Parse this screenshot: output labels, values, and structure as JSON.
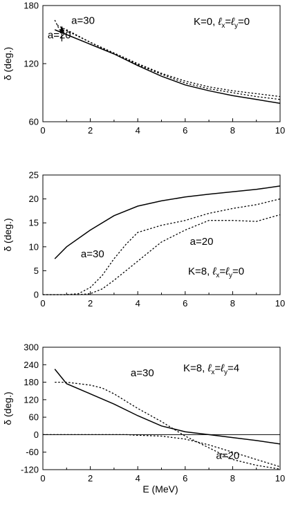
{
  "chart_data": [
    {
      "type": "line",
      "ylabel": "δ (deg.)",
      "annotation": {
        "label": "K=0, ",
        "lx": "ℓ",
        "lx_sub": "x",
        "eq": "=",
        "ly": "ℓ",
        "ly_sub": "y",
        "value": "=0"
      },
      "xlim": [
        0,
        10
      ],
      "ylim": [
        60,
        180
      ],
      "xticks": [
        0,
        2,
        4,
        6,
        8,
        10
      ],
      "yticks": [
        60,
        120,
        180
      ],
      "series": [
        {
          "style": "solid",
          "x": [
            0.5,
            1,
            2,
            3,
            4,
            5,
            6,
            7,
            8,
            9,
            10
          ],
          "y": [
            155,
            150,
            140,
            130,
            118,
            107,
            98,
            92,
            87,
            83,
            79
          ]
        },
        {
          "style": "dotted",
          "x": [
            0.5,
            0.7,
            1,
            2,
            3,
            4,
            5,
            6,
            7,
            8,
            9,
            10
          ],
          "y": [
            165,
            155,
            154,
            142,
            130,
            119,
            109,
            100,
            94,
            90,
            86,
            83
          ]
        },
        {
          "style": "dotted",
          "x": [
            0.6,
            0.8,
            1,
            2,
            3,
            4,
            5,
            6,
            7,
            8,
            9,
            10
          ],
          "y": [
            160,
            157,
            155,
            142,
            131,
            120,
            110,
            102,
            96,
            92,
            89,
            86
          ]
        }
      ],
      "labels": [
        {
          "text": "a=30",
          "x": 1.2,
          "y": 161
        },
        {
          "text": "a=20",
          "x": 0.2,
          "y": 146
        }
      ]
    },
    {
      "type": "line",
      "ylabel": "δ (deg.)",
      "annotation": {
        "label": "K=8, ",
        "lx": "ℓ",
        "lx_sub": "x",
        "eq": "=",
        "ly": "ℓ",
        "ly_sub": "y",
        "value": "=0"
      },
      "xlim": [
        0,
        10
      ],
      "ylim": [
        0,
        25
      ],
      "xticks": [
        0,
        2,
        4,
        6,
        8,
        10
      ],
      "yticks": [
        0,
        5,
        10,
        15,
        20,
        25
      ],
      "series": [
        {
          "style": "solid",
          "x": [
            0.5,
            1,
            2,
            3,
            4,
            5,
            6,
            7,
            8,
            9,
            10
          ],
          "y": [
            7.5,
            10,
            13.5,
            16.5,
            18.5,
            19.6,
            20.4,
            21,
            21.5,
            22,
            22.7
          ]
        },
        {
          "style": "dotted",
          "x": [
            0,
            1,
            1.5,
            2,
            2.5,
            3,
            3.5,
            4,
            5,
            6,
            7,
            8,
            9,
            10
          ],
          "y": [
            0,
            0,
            0.2,
            1.5,
            4,
            7.5,
            10.5,
            13,
            14.5,
            15.5,
            17,
            18,
            18.8,
            20
          ]
        },
        {
          "style": "dotted",
          "x": [
            0,
            1.5,
            2,
            2.5,
            3,
            3.5,
            4,
            4.5,
            5,
            6,
            7,
            8,
            9,
            10
          ],
          "y": [
            0,
            0,
            0.2,
            1.2,
            3,
            5,
            7,
            9,
            11,
            13.5,
            15.5,
            15.5,
            15.3,
            16.7
          ]
        }
      ],
      "labels": [
        {
          "text": "a=30",
          "x": 1.6,
          "y": 7.8
        },
        {
          "text": "a=20",
          "x": 6.2,
          "y": 10.4
        }
      ]
    },
    {
      "type": "line",
      "ylabel": "δ (deg.)",
      "annotation": {
        "label": "K=8, ",
        "lx": "ℓ",
        "lx_sub": "x",
        "eq": "=",
        "ly": "ℓ",
        "ly_sub": "y",
        "value": "=4"
      },
      "xlim": [
        0,
        10
      ],
      "ylim": [
        -120,
        300
      ],
      "xticks": [
        0,
        2,
        4,
        6,
        8,
        10
      ],
      "yticks": [
        -120,
        -60,
        0,
        60,
        120,
        180,
        240,
        300
      ],
      "series": [
        {
          "style": "solid",
          "x": [
            0.5,
            1,
            2,
            3,
            4,
            5,
            6,
            7,
            8,
            9,
            10
          ],
          "y": [
            225,
            175,
            140,
            105,
            65,
            30,
            10,
            0,
            -10,
            -20,
            -32
          ]
        },
        {
          "style": "dotted",
          "x": [
            0.5,
            1,
            2,
            2.5,
            3,
            3.5,
            4,
            5,
            6,
            7,
            8,
            9,
            10
          ],
          "y": [
            180,
            180,
            170,
            160,
            140,
            115,
            90,
            45,
            -5,
            -45,
            -85,
            -105,
            -118
          ]
        },
        {
          "style": "dotted",
          "x": [
            0,
            3,
            3.5,
            4,
            5,
            6,
            7,
            8,
            9,
            10
          ],
          "y": [
            0,
            0,
            0,
            -2,
            -5,
            -15,
            -35,
            -60,
            -85,
            -110
          ]
        }
      ],
      "labels": [
        {
          "text": "a=30",
          "x": 3.7,
          "y": 200
        },
        {
          "text": "a=20",
          "x": 7.3,
          "y": -83
        }
      ]
    }
  ],
  "xlabel": "E (MeV)"
}
